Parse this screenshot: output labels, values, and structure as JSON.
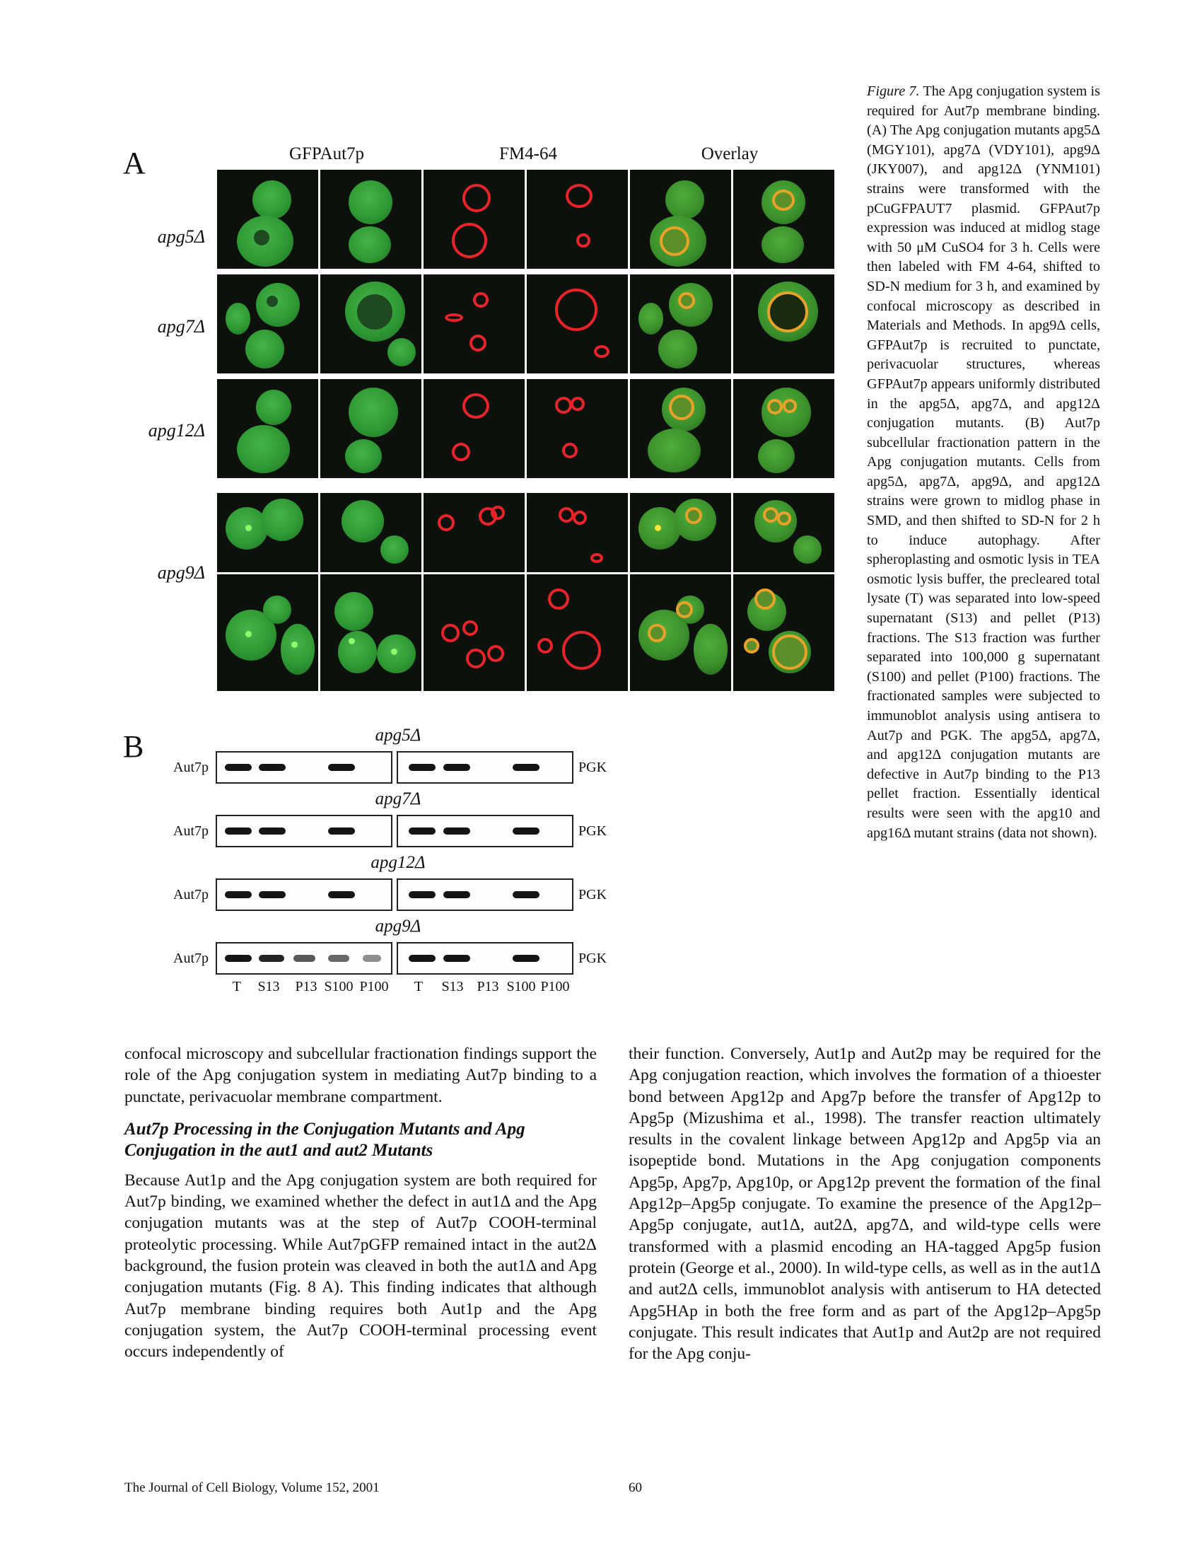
{
  "figure": {
    "panel_a": {
      "letter": "A",
      "columns": [
        "GFPAut7p",
        "FM4-64",
        "Overlay"
      ],
      "rows": [
        "apg5Δ",
        "apg7Δ",
        "apg12Δ",
        "apg9Δ"
      ]
    },
    "panel_b": {
      "letter": "B",
      "blots": [
        {
          "title": "apg5Δ",
          "left": "Aut7p",
          "right": "PGK",
          "aut7p_bands": [
            1,
            1,
            0,
            1,
            0
          ],
          "pgk_bands": [
            1,
            1,
            0,
            1,
            0
          ]
        },
        {
          "title": "apg7Δ",
          "left": "Aut7p",
          "right": "PGK",
          "aut7p_bands": [
            1,
            1,
            0,
            1,
            0
          ],
          "pgk_bands": [
            1,
            1,
            0,
            1,
            0
          ]
        },
        {
          "title": "apg12Δ",
          "left": "Aut7p",
          "right": "PGK",
          "aut7p_bands": [
            1,
            1,
            0,
            1,
            0
          ],
          "pgk_bands": [
            1,
            1,
            0,
            1,
            0
          ]
        },
        {
          "title": "apg9Δ",
          "left": "Aut7p",
          "right": "PGK",
          "aut7p_bands": [
            1,
            0.9,
            0.55,
            0.45,
            0.2
          ],
          "pgk_bands": [
            1,
            1,
            0,
            1,
            0
          ]
        }
      ],
      "lanes": [
        "T",
        "S13",
        "P13",
        "S100",
        "P100",
        "T",
        "S13",
        "P13",
        "S100",
        "P100"
      ]
    }
  },
  "caption": {
    "label": "Figure 7.",
    "text": "The Apg conjugation system is required for Aut7p membrane binding. (A) The Apg conjugation mutants apg5Δ (MGY101), apg7Δ (VDY101), apg9Δ (JKY007), and apg12Δ (YNM101) strains were transformed with the pCuGFPAUT7 plasmid. GFPAut7p expression was induced at midlog stage with 50 μM CuSO4 for 3 h. Cells were then labeled with FM 4-64, shifted to SD-N medium for 3 h, and examined by confocal microscopy as described in Materials and Methods. In apg9Δ cells, GFPAut7p is recruited to punctate, perivacuolar structures, whereas GFPAut7p appears uniformly distributed in the apg5Δ, apg7Δ, and apg12Δ conjugation mutants. (B) Aut7p subcellular fractionation pattern in the Apg conjugation mutants. Cells from apg5Δ, apg7Δ, apg9Δ, and apg12Δ strains were grown to midlog phase in SMD, and then shifted to SD-N for 2 h to induce autophagy. After spheroplasting and osmotic lysis in TEA osmotic lysis buffer, the precleared total lysate (T) was separated into low-speed supernatant (S13) and pellet (P13) fractions. The S13 fraction was further separated into 100,000 g supernatant (S100) and pellet (P100) fractions. The fractionated samples were subjected to immunoblot analysis using antisera to Aut7p and PGK. The apg5Δ, apg7Δ, and apg12Δ conjugation mutants are defective in Aut7p binding to the P13 pellet fraction. Essentially identical results were seen with the apg10 and apg16Δ mutant strains (data not shown)."
  },
  "body": {
    "left_para_1": "confocal microscopy and subcellular fractionation findings support the role of the Apg conjugation system in mediating Aut7p binding to a punctate, perivacuolar membrane compartment.",
    "heading": "Aut7p Processing in the Conjugation Mutants and Apg Conjugation in the aut1 and aut2 Mutants",
    "left_para_2": "Because Aut1p and the Apg conjugation system are both required for Aut7p binding, we examined whether the defect in aut1Δ and the Apg conjugation mutants was at the step of Aut7p COOH-terminal proteolytic processing. While Aut7pGFP remained intact in the aut2Δ background, the fusion protein was cleaved in both the aut1Δ and Apg conjugation mutants (Fig. 8 A). This finding indicates that although Aut7p membrane binding requires both Aut1p and the Apg conjugation system, the Aut7p COOH-terminal processing event occurs independently of",
    "right_para_1": "their function. Conversely, Aut1p and Aut2p may be required for the Apg conjugation reaction, which involves the formation of a thioester bond between Apg12p and Apg7p before the transfer of Apg12p to Apg5p (Mizushima et al., 1998). The transfer reaction ultimately results in the covalent linkage between Apg12p and Apg5p via an isopeptide bond. Mutations in the Apg conjugation components Apg5p, Apg7p, Apg10p, or Apg12p prevent the formation of the final Apg12p–Apg5p conjugate. To examine the presence of the Apg12p–Apg5p conjugate, aut1Δ, aut2Δ, apg7Δ, and wild-type cells were transformed with a plasmid encoding an HA-tagged Apg5p fusion protein (George et al., 2000). In wild-type cells, as well as in the aut1Δ and aut2Δ cells, immunoblot analysis with antiserum to HA detected Apg5HAp in both the free form and as part of the Apg12p–Apg5p conjugate. This result indicates that Aut1p and Aut2p are not required for the Apg conju-"
  },
  "footer": {
    "journal": "The Journal of Cell Biology, Volume 152, 2001",
    "page": "60"
  }
}
